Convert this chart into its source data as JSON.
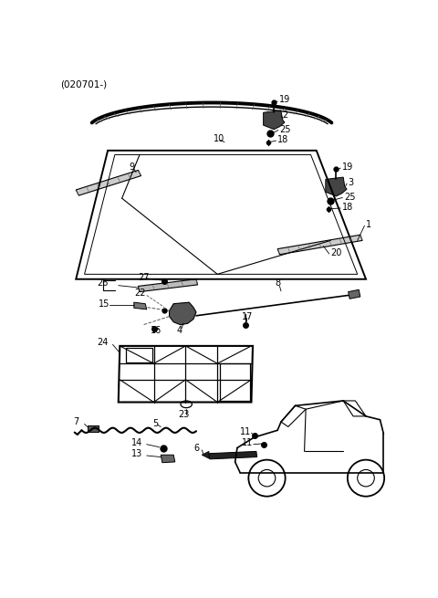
{
  "title": "(020701-)",
  "bg": "#ffffff",
  "lc": "#000000",
  "fig_w": 4.8,
  "fig_h": 6.55,
  "dpi": 100
}
